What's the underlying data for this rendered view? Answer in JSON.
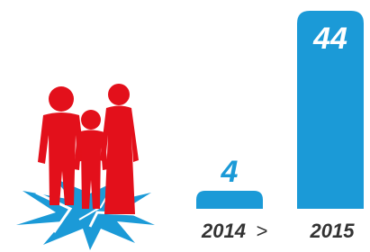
{
  "chart_data": {
    "type": "bar",
    "categories": [
      "2014",
      "2015"
    ],
    "values": [
      4,
      44
    ],
    "color": "#1b9ad7",
    "comparison_symbol": ">"
  }
}
